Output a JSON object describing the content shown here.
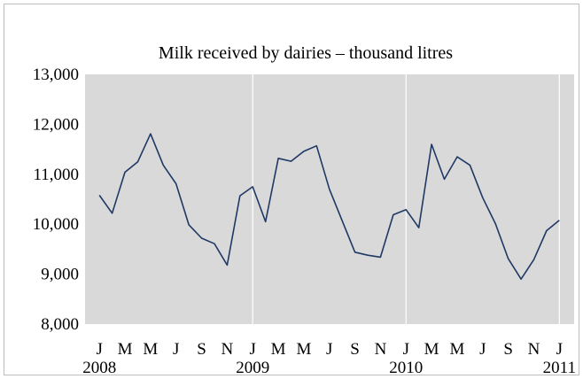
{
  "chart_data": {
    "type": "line",
    "title": "Milk received  by dairies – thousand litres",
    "xlabel": "",
    "ylabel": "",
    "ylim": [
      8000,
      13000
    ],
    "yticks": [
      "8,000",
      "9,000",
      "10,000",
      "11,000",
      "12,000",
      "13,000"
    ],
    "ytick_values": [
      8000,
      9000,
      10000,
      11000,
      12000,
      13000
    ],
    "grid": "vertical lines at each January",
    "month_labels": [
      "J",
      "M",
      "M",
      "J",
      "S",
      "N",
      "J",
      "M",
      "M",
      "J",
      "S",
      "N",
      "J",
      "M",
      "M",
      "J",
      "S",
      "N",
      "J"
    ],
    "year_labels": [
      "2008",
      "2009",
      "2010",
      "2011"
    ],
    "series": [
      {
        "color": "#1f3864",
        "x": [
          "2008-01",
          "2008-02",
          "2008-03",
          "2008-04",
          "2008-05",
          "2008-06",
          "2008-07",
          "2008-08",
          "2008-09",
          "2008-10",
          "2008-11",
          "2008-12",
          "2009-01",
          "2009-02",
          "2009-03",
          "2009-04",
          "2009-05",
          "2009-06",
          "2009-07",
          "2009-08",
          "2009-09",
          "2009-10",
          "2009-11",
          "2009-12",
          "2010-01",
          "2010-02",
          "2010-03",
          "2010-04",
          "2010-05",
          "2010-06",
          "2010-07",
          "2010-08",
          "2010-09",
          "2010-10",
          "2010-11",
          "2010-12",
          "2011-01"
        ],
        "values": [
          10580,
          10220,
          11040,
          11250,
          11810,
          11180,
          10810,
          9990,
          9720,
          9610,
          9180,
          10570,
          10750,
          10050,
          11320,
          11260,
          11460,
          11570,
          10700,
          10070,
          9440,
          9380,
          9340,
          10190,
          10290,
          9930,
          11600,
          10900,
          11350,
          11180,
          10530,
          10010,
          9310,
          8900,
          9290,
          9870,
          10080
        ]
      }
    ]
  },
  "colors": {
    "plot_background": "#d9d9d9",
    "gridline": "#ffffff",
    "line": "#1f3864",
    "frame_border": "#bdbdbd"
  }
}
